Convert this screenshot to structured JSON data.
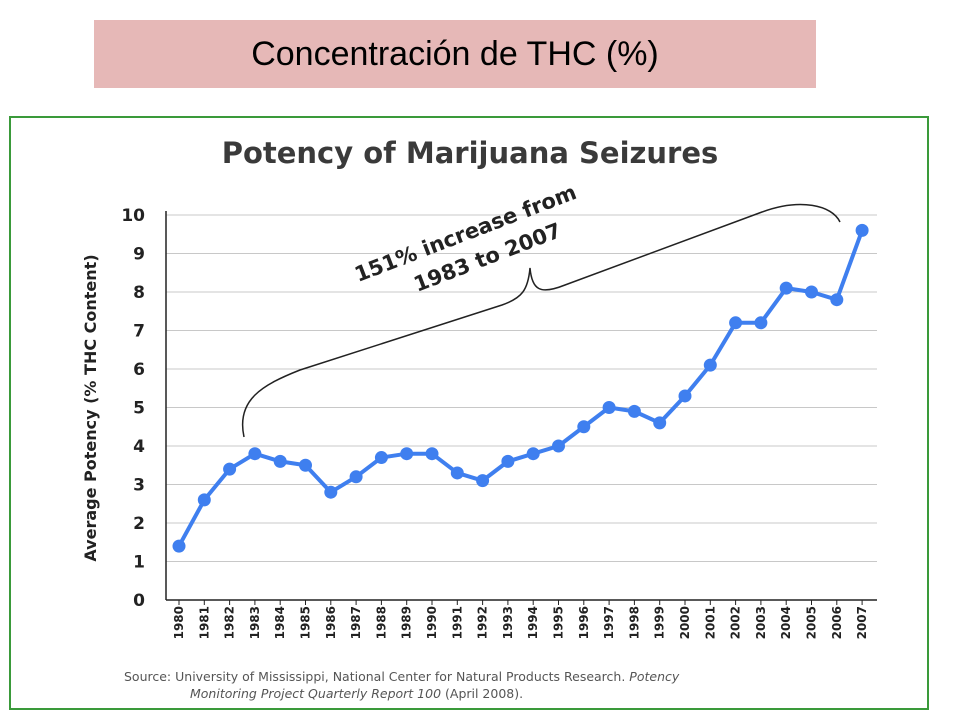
{
  "slide": {
    "title": "Concentración de THC (%)"
  },
  "chart_data": {
    "type": "line",
    "title": "Potency of Marijuana Seizures",
    "ylabel": "Average Potency (% THC Content)",
    "xlabel": "",
    "ylim": [
      0,
      10
    ],
    "yticks": [
      "0",
      "1",
      "2",
      "3",
      "4",
      "5",
      "6",
      "7",
      "8",
      "9",
      "10"
    ],
    "grid": true,
    "categories": [
      "1980",
      "1981",
      "1982",
      "1983",
      "1984",
      "1985",
      "1986",
      "1987",
      "1988",
      "1989",
      "1990",
      "1991",
      "1992",
      "1993",
      "1994",
      "1995",
      "1996",
      "1997",
      "1998",
      "1999",
      "2000",
      "2001",
      "2002",
      "2003",
      "2004",
      "2005",
      "2006",
      "2007"
    ],
    "series": [
      {
        "values": [
          1.4,
          2.6,
          3.4,
          3.8,
          3.6,
          3.5,
          2.8,
          3.2,
          3.7,
          3.8,
          3.8,
          3.3,
          3.1,
          3.6,
          3.8,
          4.0,
          4.5,
          5.0,
          4.9,
          4.6,
          5.3,
          6.1,
          7.2,
          7.2,
          8.1,
          8.0,
          7.8,
          9.6
        ]
      }
    ],
    "colors": {
      "line": "#3f7fef",
      "grid": "#c8c8c8",
      "axis": "#222222"
    },
    "annotation": {
      "line1": "151% increase from",
      "line2": "1983 to 2007"
    },
    "source": {
      "prefix": "Source: University of Mississippi, National Center for Natural Products Research.",
      "italic1": "Potency",
      "italic2": "Monitoring Project Quarterly Report 100",
      "suffix": "(April 2008)."
    }
  }
}
